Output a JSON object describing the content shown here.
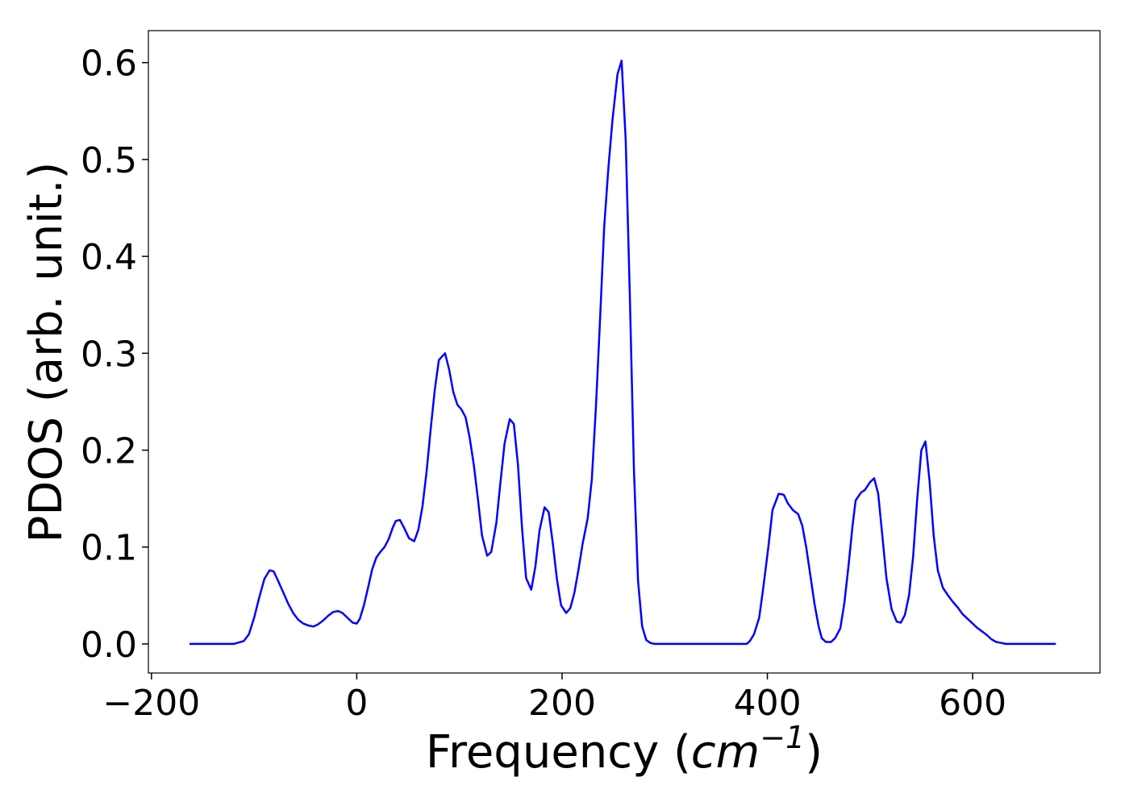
{
  "chart_data": {
    "type": "line",
    "xlabel": [
      "Frequency (",
      "cm",
      "−1",
      ")"
    ],
    "ylabel": "PDOS (arb. unit.)",
    "color": "#0000ff",
    "xlim": [
      -203,
      724
    ],
    "ylim": [
      -0.03,
      0.633
    ],
    "xticks": [
      {
        "value": -200,
        "label": "−200"
      },
      0,
      200,
      400,
      600
    ],
    "yticks": [
      {
        "value": 0,
        "label": "0.0"
      },
      0.1,
      0.2,
      0.3,
      0.4,
      0.5,
      0.6
    ],
    "grid": false,
    "x": [
      -163,
      -120,
      -110,
      -105,
      -100,
      -95,
      -90,
      -85,
      -81,
      -77,
      -72,
      -67,
      -62,
      -57,
      -52,
      -47,
      -42,
      -38,
      -33,
      -28,
      -23,
      -18,
      -14,
      -9,
      -4,
      0,
      3,
      7,
      11,
      15,
      19,
      23,
      27,
      31,
      35,
      38,
      42,
      46,
      51,
      56,
      60,
      64,
      68,
      72,
      76,
      80,
      86,
      90,
      94,
      98,
      102,
      106,
      110,
      114,
      118,
      122,
      127,
      131,
      136,
      140,
      144,
      149,
      153,
      157,
      161,
      165,
      170,
      174,
      178,
      183,
      187,
      191,
      195,
      199,
      204,
      208,
      212,
      216,
      220,
      225,
      229,
      233,
      237,
      241,
      245,
      249,
      254,
      258,
      262,
      266,
      270,
      274,
      278,
      282,
      286,
      290,
      380,
      383,
      387,
      392,
      396,
      401,
      405,
      411,
      416,
      420,
      425,
      430,
      434,
      438,
      442,
      446,
      450,
      453,
      457,
      462,
      466,
      471,
      475,
      479,
      483,
      486,
      491,
      495,
      500,
      504,
      508,
      512,
      516,
      521,
      526,
      530,
      534,
      538,
      542,
      546,
      550,
      554,
      558,
      562,
      566,
      571,
      576,
      581,
      586,
      590,
      595,
      600,
      604,
      609,
      614,
      618,
      623,
      628,
      632,
      681
    ],
    "values": [
      0,
      0,
      0.003,
      0.01,
      0.027,
      0.048,
      0.067,
      0.076,
      0.075,
      0.066,
      0.054,
      0.042,
      0.032,
      0.025,
      0.021,
      0.019,
      0.018,
      0.02,
      0.024,
      0.029,
      0.033,
      0.034,
      0.032,
      0.027,
      0.022,
      0.021,
      0.026,
      0.04,
      0.058,
      0.077,
      0.089,
      0.095,
      0.1,
      0.108,
      0.12,
      0.127,
      0.128,
      0.12,
      0.109,
      0.106,
      0.118,
      0.142,
      0.178,
      0.222,
      0.262,
      0.293,
      0.3,
      0.283,
      0.26,
      0.247,
      0.242,
      0.234,
      0.213,
      0.185,
      0.15,
      0.112,
      0.091,
      0.095,
      0.125,
      0.167,
      0.207,
      0.232,
      0.227,
      0.185,
      0.12,
      0.068,
      0.056,
      0.08,
      0.117,
      0.141,
      0.136,
      0.104,
      0.067,
      0.04,
      0.032,
      0.037,
      0.053,
      0.077,
      0.103,
      0.13,
      0.17,
      0.245,
      0.335,
      0.43,
      0.49,
      0.54,
      0.588,
      0.602,
      0.52,
      0.36,
      0.18,
      0.065,
      0.018,
      0.004,
      0.001,
      0,
      0,
      0.003,
      0.01,
      0.027,
      0.058,
      0.1,
      0.138,
      0.155,
      0.154,
      0.145,
      0.138,
      0.134,
      0.122,
      0.099,
      0.07,
      0.041,
      0.018,
      0.006,
      0.002,
      0.002,
      0.006,
      0.016,
      0.042,
      0.08,
      0.122,
      0.148,
      0.156,
      0.159,
      0.167,
      0.171,
      0.155,
      0.112,
      0.068,
      0.036,
      0.023,
      0.022,
      0.03,
      0.05,
      0.09,
      0.15,
      0.2,
      0.209,
      0.168,
      0.112,
      0.076,
      0.058,
      0.05,
      0.043,
      0.037,
      0.031,
      0.026,
      0.021,
      0.017,
      0.013,
      0.009,
      0.005,
      0.002,
      0.001,
      0,
      0
    ]
  }
}
